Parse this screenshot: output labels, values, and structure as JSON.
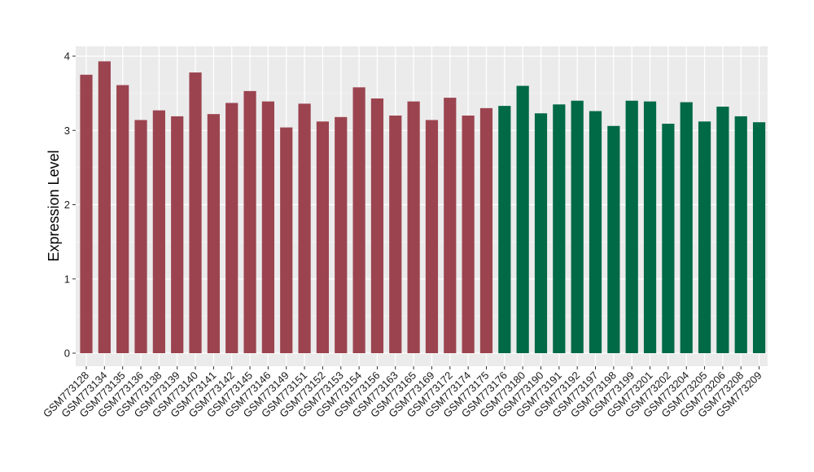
{
  "chart_data": {
    "type": "bar",
    "title": "",
    "xlabel": "",
    "ylabel": "Expression Level",
    "ylim": [
      0,
      4.15
    ],
    "yticks": [
      0,
      1,
      2,
      3,
      4
    ],
    "grid": true,
    "background": "#ebebeb",
    "group_colors": [
      "#9b4450",
      "#006946"
    ],
    "categories": [
      "GSM773128",
      "GSM773134",
      "GSM773135",
      "GSM773136",
      "GSM773138",
      "GSM773139",
      "GSM773140",
      "GSM773141",
      "GSM773142",
      "GSM773145",
      "GSM773146",
      "GSM773149",
      "GSM773151",
      "GSM773152",
      "GSM773153",
      "GSM773154",
      "GSM773156",
      "GSM773163",
      "GSM773165",
      "GSM773169",
      "GSM773172",
      "GSM773174",
      "GSM773175",
      "GSM773176",
      "GSM773180",
      "GSM773190",
      "GSM773191",
      "GSM773192",
      "GSM773197",
      "GSM773198",
      "GSM773199",
      "GSM773201",
      "GSM773202",
      "GSM773204",
      "GSM773205",
      "GSM773206",
      "GSM773208",
      "GSM773209"
    ],
    "values": [
      3.75,
      3.93,
      3.61,
      3.14,
      3.27,
      3.19,
      3.78,
      3.22,
      3.37,
      3.53,
      3.39,
      3.04,
      3.36,
      3.12,
      3.18,
      3.58,
      3.43,
      3.2,
      3.39,
      3.14,
      3.44,
      3.2,
      3.3,
      3.33,
      3.6,
      3.23,
      3.35,
      3.4,
      3.26,
      3.06,
      3.4,
      3.39,
      3.09,
      3.38,
      3.12,
      3.32,
      3.19,
      3.11
    ],
    "groups": [
      0,
      0,
      0,
      0,
      0,
      0,
      0,
      0,
      0,
      0,
      0,
      0,
      0,
      0,
      0,
      0,
      0,
      0,
      0,
      0,
      0,
      0,
      0,
      1,
      1,
      1,
      1,
      1,
      1,
      1,
      1,
      1,
      1,
      1,
      1,
      1,
      1,
      1
    ]
  }
}
